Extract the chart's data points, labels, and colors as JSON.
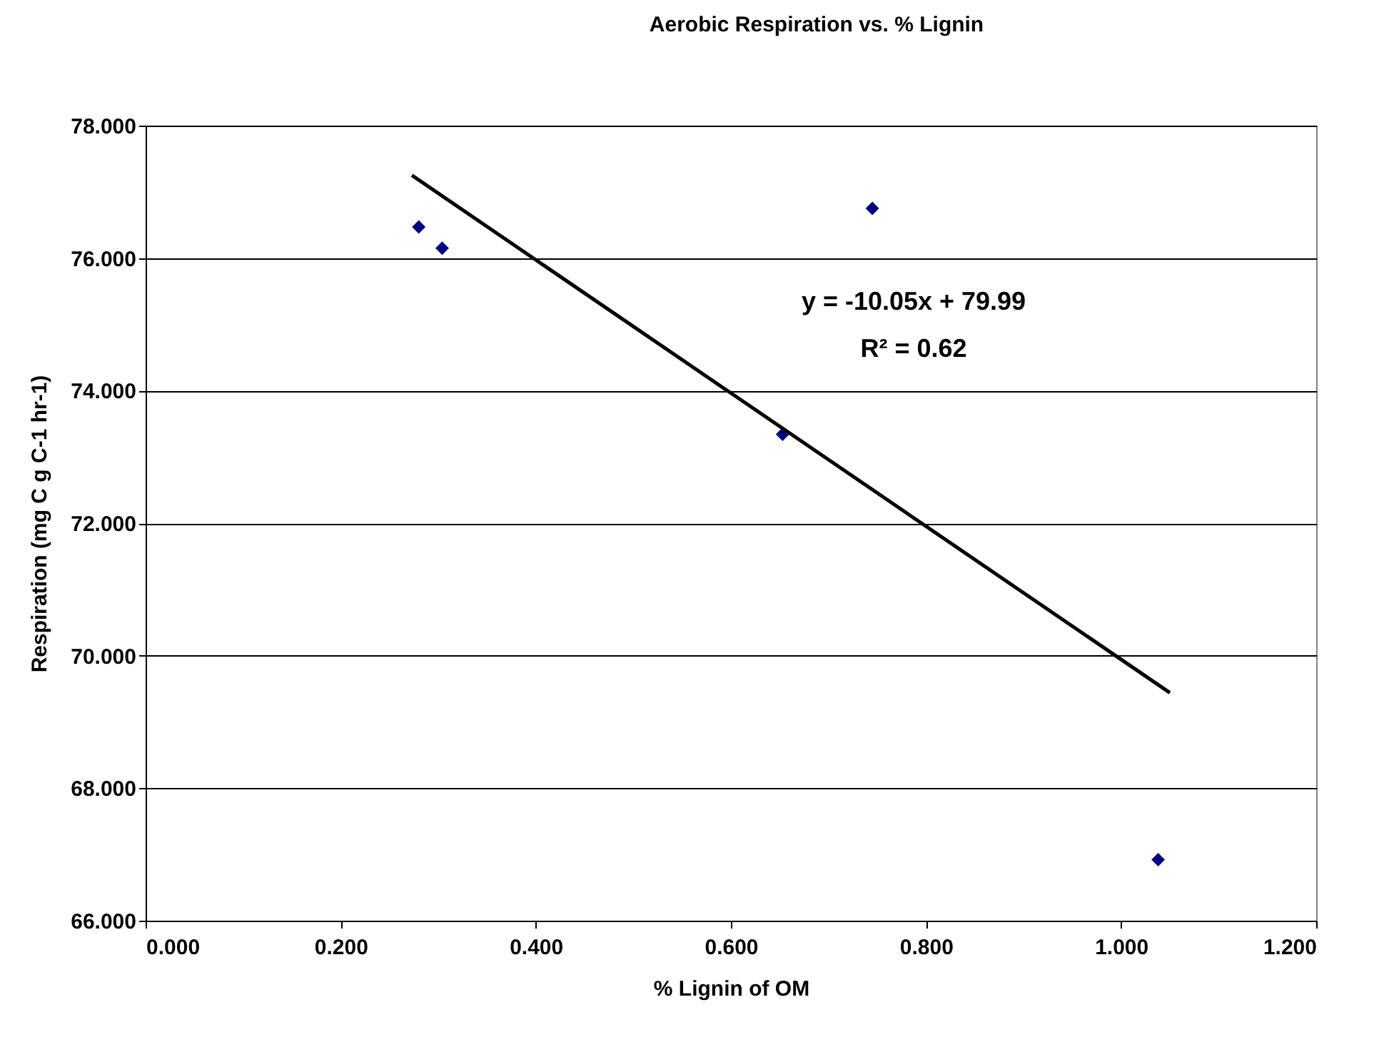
{
  "chart_data": {
    "type": "scatter",
    "title": "Aerobic Respiration vs. % Lignin",
    "xlabel": "% Lignin of OM",
    "ylabel": "Respiration (mg C g C-1 hr-1)",
    "series": [
      {
        "color": "#000080",
        "marker": "diamond",
        "x": [
          0.28,
          0.304,
          0.653,
          0.745,
          1.038
        ],
        "values": [
          76.47,
          76.15,
          73.34,
          76.75,
          66.92
        ]
      },
      {
        "type": "line",
        "color": "#000000",
        "marker": "none",
        "x": [
          0.273,
          1.05
        ],
        "values": [
          77.25,
          69.44
        ]
      }
    ],
    "xlim": [
      0,
      1.2
    ],
    "xticks": [
      {
        "value": 0,
        "label": "0.000"
      },
      {
        "value": 0.2,
        "label": "0.200"
      },
      {
        "value": 0.4,
        "label": "0.400"
      },
      {
        "value": 0.6,
        "label": "0.600"
      },
      {
        "value": 0.8,
        "label": "0.800"
      },
      {
        "value": 1,
        "label": "1.000"
      },
      {
        "value": 1.2,
        "label": "1.200"
      }
    ],
    "ylim": [
      66,
      78
    ],
    "yticks": [
      {
        "value": 66,
        "label": "66.000"
      },
      {
        "value": 68,
        "label": "68.000"
      },
      {
        "value": 70,
        "label": "70.000"
      },
      {
        "value": 72,
        "label": "72.000"
      },
      {
        "value": 74,
        "label": "74.000"
      },
      {
        "value": 76,
        "label": "76.000"
      },
      {
        "value": 78,
        "label": "78.000"
      }
    ],
    "grid": "y",
    "annotations": [
      "y = -10.05x + 79.99",
      "R² = 0.62"
    ]
  }
}
